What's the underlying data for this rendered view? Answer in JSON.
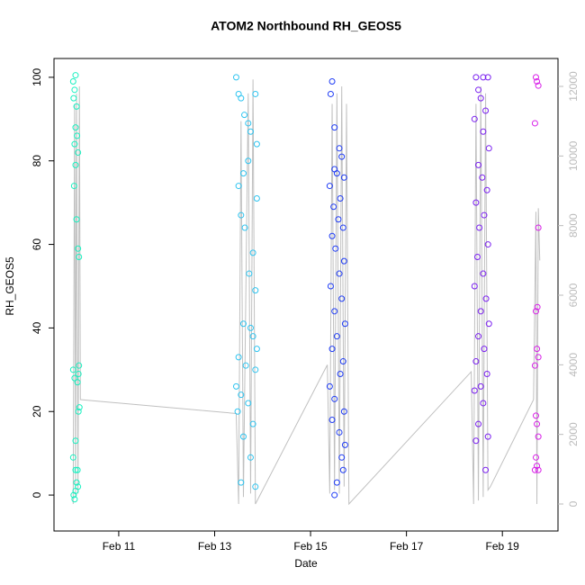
{
  "chart_data": {
    "type": "scatter",
    "title": "ATOM2 Northbound RH_GEOS5",
    "xlabel": "Date",
    "ylabel": "RH_GEOS5",
    "xlim": [
      9.65,
      20.16
    ],
    "xticks": [
      {
        "value": 11,
        "label": "Feb 11"
      },
      {
        "value": 13,
        "label": "Feb 13"
      },
      {
        "value": 15,
        "label": "Feb 15"
      },
      {
        "value": 17,
        "label": "Feb 17"
      },
      {
        "value": 19,
        "label": "Feb 19"
      }
    ],
    "ylim": [
      -8.6,
      104.5
    ],
    "yticks": [
      0,
      20,
      40,
      60,
      80,
      100
    ],
    "y2lim": [
      -776,
      12802
    ],
    "y2ticks": [
      0,
      2000,
      4000,
      6000,
      8000,
      10000,
      12000
    ],
    "series": [
      {
        "type": "line",
        "axis": "y2",
        "color": "#c0c0c0",
        "x": [
          10.05,
          10.08,
          10.1,
          10.12,
          10.15,
          10.18,
          10.2,
          13.45,
          13.5,
          13.55,
          13.6,
          13.7,
          13.75,
          13.8,
          13.85,
          15.35,
          15.4,
          15.45,
          15.5,
          15.55,
          15.6,
          15.65,
          15.7,
          15.75,
          15.8,
          18.35,
          18.4,
          18.45,
          18.5,
          18.55,
          18.6,
          18.65,
          18.7,
          18.75,
          19.65,
          19.7,
          19.72,
          19.75,
          19.78
        ],
        "values": [
          0,
          11500,
          200,
          11800,
          300,
          12000,
          3000,
          2600,
          0,
          11000,
          200,
          11800,
          300,
          12200,
          0,
          4000,
          300,
          11500,
          400,
          11800,
          300,
          12000,
          500,
          11500,
          0,
          3800,
          0,
          11500,
          100,
          12000,
          200,
          11800,
          400,
          500,
          3000,
          8400,
          0,
          8500,
          7000
        ]
      },
      {
        "color": "#19f0c0",
        "x": [
          10.05,
          10.08,
          10.1,
          10.06,
          10.12,
          10.1,
          10.13,
          10.08,
          10.15,
          10.1,
          10.07,
          10.12,
          10.15,
          10.17,
          10.05,
          10.08,
          10.17,
          10.16,
          10.14,
          10.18,
          10.16,
          10.1,
          10.05,
          10.1,
          10.14,
          10.12,
          10.15,
          10.1,
          10.06,
          10.08
        ],
        "values": [
          99,
          97,
          100.5,
          95,
          93,
          88,
          86,
          84,
          82,
          79,
          74,
          66,
          59,
          57,
          30,
          28,
          31,
          29,
          27,
          21,
          20,
          13,
          9,
          6,
          6,
          3,
          2,
          1,
          0,
          -1
        ]
      },
      {
        "color": "#2ec4f0",
        "x": [
          13.45,
          13.5,
          13.55,
          13.62,
          13.7,
          13.75,
          13.85,
          13.88,
          13.6,
          13.7,
          13.5,
          13.88,
          13.55,
          13.63,
          13.8,
          13.72,
          13.85,
          13.6,
          13.75,
          13.8,
          13.88,
          13.5,
          13.65,
          13.85,
          13.45,
          13.55,
          13.7,
          13.48,
          13.8,
          13.6,
          13.75,
          13.55,
          13.85
        ],
        "values": [
          100,
          96,
          95,
          91,
          89,
          87,
          96,
          84,
          77,
          80,
          74,
          71,
          67,
          64,
          58,
          53,
          49,
          41,
          40,
          38,
          35,
          33,
          31,
          30,
          26,
          24,
          22,
          20,
          17,
          14,
          9,
          3,
          2
        ]
      },
      {
        "color": "#1f3cf5",
        "x": [
          15.45,
          15.42,
          15.5,
          15.6,
          15.65,
          15.5,
          15.55,
          15.7,
          15.4,
          15.62,
          15.48,
          15.58,
          15.68,
          15.45,
          15.52,
          15.7,
          15.6,
          15.42,
          15.65,
          15.5,
          15.72,
          15.55,
          15.45,
          15.68,
          15.62,
          15.4,
          15.5,
          15.7,
          15.45,
          15.6,
          15.72,
          15.65,
          15.68,
          15.55,
          15.5
        ],
        "values": [
          99,
          96,
          88,
          83,
          81,
          78,
          77,
          76,
          74,
          71,
          69,
          66,
          64,
          62,
          59,
          56,
          53,
          50,
          47,
          44,
          41,
          38,
          35,
          32,
          29,
          26,
          23,
          20,
          18,
          15,
          12,
          9,
          6,
          3,
          0
        ]
      },
      {
        "color": "#7a1ff0",
        "x": [
          18.45,
          18.6,
          18.7,
          18.5,
          18.55,
          18.65,
          18.42,
          18.6,
          18.72,
          18.5,
          18.58,
          18.68,
          18.45,
          18.62,
          18.52,
          18.7,
          18.48,
          18.6,
          18.42,
          18.66,
          18.55,
          18.72,
          18.5,
          18.62,
          18.45,
          18.68,
          18.55,
          18.42,
          18.6,
          18.5,
          18.7,
          18.45,
          18.65
        ],
        "values": [
          100,
          100,
          100,
          97,
          95,
          92,
          90,
          87,
          83,
          79,
          76,
          73,
          70,
          67,
          64,
          60,
          57,
          53,
          50,
          47,
          44,
          41,
          38,
          35,
          32,
          29,
          26,
          25,
          22,
          17,
          14,
          13,
          6
        ]
      },
      {
        "color": "#d81fe8",
        "x": [
          19.7,
          19.72,
          19.75,
          19.68,
          19.75,
          19.73,
          19.7,
          19.72,
          19.75,
          19.68,
          19.7,
          19.72,
          19.75,
          19.7,
          19.72,
          19.68,
          19.75
        ],
        "values": [
          100,
          99,
          98,
          89,
          64,
          45,
          44,
          35,
          33,
          31,
          19,
          17,
          14,
          9,
          7,
          6,
          6
        ]
      }
    ]
  }
}
